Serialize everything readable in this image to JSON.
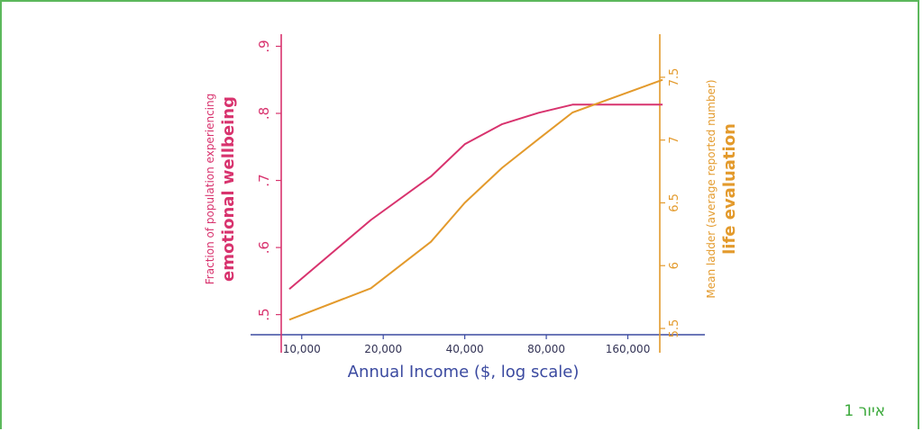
{
  "colors": {
    "emotional": "#d8336e",
    "life": "#e39a2c",
    "axis_x": "#3b4aa0",
    "frame": "#5cb85c",
    "caption": "#3aa83a"
  },
  "caption": "איור 1",
  "chart_data": {
    "type": "line",
    "xscale": "log",
    "xlabel": "Annual Income ($, log scale)",
    "x_ticks": [
      10000,
      20000,
      40000,
      80000,
      160000
    ],
    "x_tick_labels": [
      "10,000",
      "20,000",
      "40,000",
      "80,000",
      "160,000"
    ],
    "xlim": [
      8400,
      210000
    ],
    "left_axis": {
      "label_line1": "Fraction of population experiencing",
      "label_line2": "emotional wellbeing",
      "ylim": [
        0.47,
        0.91
      ],
      "ticks": [
        0.5,
        0.6,
        0.7,
        0.8,
        0.9
      ],
      "tick_labels": [
        ".5",
        ".6",
        ".7",
        ".8",
        ".9"
      ]
    },
    "right_axis": {
      "label_line1": "Mean ladder (average reported number)",
      "label_line2": "life evaluation",
      "ylim": [
        5.45,
        7.8
      ],
      "ticks": [
        5.5,
        6,
        6.5,
        7,
        7.5
      ],
      "tick_labels": [
        "5.5",
        "6",
        "6.5",
        "7",
        "7.5"
      ]
    },
    "series": [
      {
        "name": "emotional wellbeing",
        "axis": "left",
        "x": [
          9000,
          18000,
          30000,
          40000,
          55000,
          75000,
          100000,
          215000
        ],
        "y": [
          0.538,
          0.641,
          0.706,
          0.754,
          0.784,
          0.801,
          0.813,
          0.813
        ]
      },
      {
        "name": "life evaluation",
        "axis": "right",
        "x": [
          9000,
          18000,
          30000,
          40000,
          55000,
          75000,
          100000,
          215000
        ],
        "y": [
          5.57,
          5.82,
          6.19,
          6.5,
          6.78,
          7.01,
          7.22,
          7.48
        ]
      }
    ]
  }
}
